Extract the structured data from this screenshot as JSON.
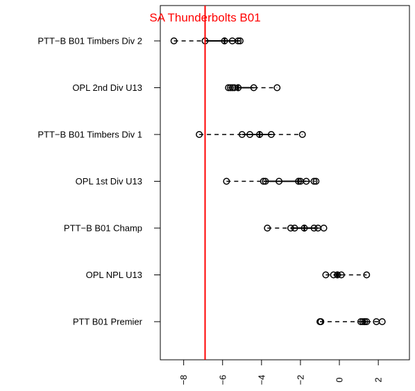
{
  "chart_data": {
    "type": "boxplot",
    "orientation": "horizontal",
    "title": "",
    "xlabel": "",
    "ylabel": "",
    "xlim": [
      -9.2,
      3.6
    ],
    "x_ticks": [
      -8,
      -6,
      -4,
      -2,
      0,
      2
    ],
    "tick_labels": [
      "−8",
      "−6",
      "−4",
      "−2",
      "0",
      "2"
    ],
    "grid": false,
    "legend": "none",
    "colors": {
      "boxes": "#000000",
      "reference": "#ff0000"
    },
    "reference_line": {
      "value": -6.9,
      "label": "SA Thunderbolts B01"
    },
    "categories": [
      "PTT−B B01 Timbers Div 2",
      "OPL 2nd Div U13",
      "PTT−B B01 Timbers Div 1",
      "OPL 1st Div U13",
      "PTT−B B01 Champ",
      "OPL NPL U13",
      "PTT B01 Premier"
    ],
    "series": [
      {
        "min": -8.5,
        "q1": -6.9,
        "median": -5.9,
        "q3": -5.1,
        "max": -5.1,
        "points": [
          -8.5,
          -6.9,
          -5.9,
          -5.5,
          -5.2,
          -5.1
        ]
      },
      {
        "min": -5.7,
        "q1": -5.4,
        "median": -5.2,
        "q3": -4.4,
        "max": -3.2,
        "points": [
          -5.7,
          -5.6,
          -5.5,
          -5.4,
          -5.2,
          -4.4,
          -3.2
        ]
      },
      {
        "min": -7.2,
        "q1": -5.0,
        "median": -4.1,
        "q3": -3.5,
        "max": -1.9,
        "points": [
          -7.2,
          -5.0,
          -4.6,
          -4.1,
          -3.5,
          -1.9
        ]
      },
      {
        "min": -5.8,
        "q1": -3.9,
        "median": -2.1,
        "q3": -1.7,
        "max": -1.2,
        "points": [
          -5.8,
          -3.9,
          -3.8,
          -3.1,
          -2.1,
          -2.0,
          -1.7,
          -1.3,
          -1.2
        ]
      },
      {
        "min": -3.7,
        "q1": -2.5,
        "median": -1.8,
        "q3": -1.2,
        "max": -0.8,
        "points": [
          -3.7,
          -2.5,
          -2.3,
          -1.8,
          -1.3,
          -1.1,
          -0.8
        ]
      },
      {
        "min": -0.7,
        "q1": -0.3,
        "median": -0.1,
        "q3": 0.1,
        "max": 1.4,
        "points": [
          -0.7,
          -0.3,
          -0.1,
          0.1,
          1.4
        ]
      },
      {
        "min": -1.0,
        "q1": 1.1,
        "median": 1.3,
        "q3": 1.4,
        "max": 2.2,
        "points": [
          -1.0,
          -0.95,
          1.1,
          1.2,
          1.3,
          1.4,
          1.9,
          2.2
        ]
      }
    ]
  }
}
